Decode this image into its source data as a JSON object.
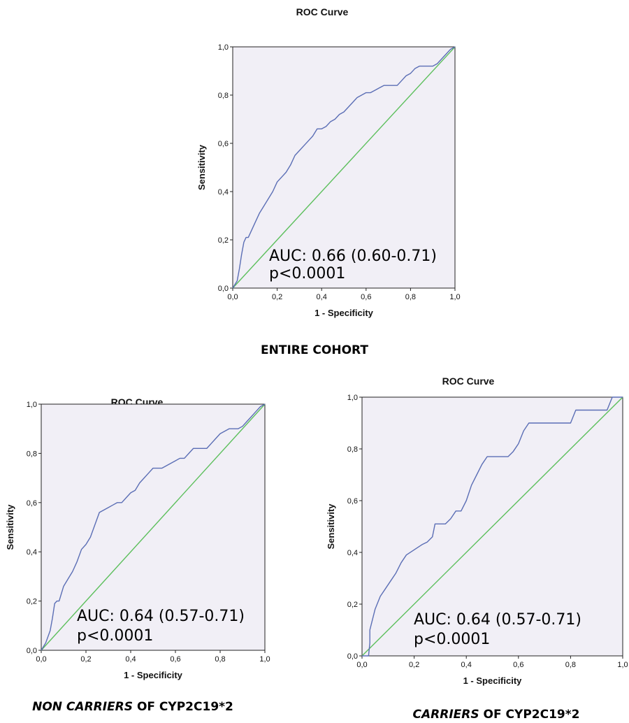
{
  "chart_data": [
    {
      "type": "line",
      "title": "ROC Curve",
      "xlabel": "1 - Specificity",
      "ylabel": "Sensitivity",
      "xlim": [
        0,
        1
      ],
      "ylim": [
        0,
        1
      ],
      "x_ticks": [
        "0,0",
        "0,2",
        "0,4",
        "0,6",
        "0,8",
        "1,0"
      ],
      "y_ticks": [
        "0,0",
        "0,2",
        "0,4",
        "0,6",
        "0,8",
        "1,0"
      ],
      "grid": false,
      "annotation": [
        "AUC: 0.66 (0.60-0.71)",
        "p<0.0001"
      ],
      "caption": [
        "ENTIRE COHORT"
      ],
      "colors": {
        "curve": "#5b6eb5",
        "diagonal": "#5cbf5c",
        "plot_bg": "#f1eff6"
      },
      "series": [
        {
          "x": [
            0,
            0.02,
            0.03,
            0.04,
            0.05,
            0.06,
            0.07,
            0.08,
            0.1,
            0.12,
            0.14,
            0.16,
            0.18,
            0.2,
            0.22,
            0.24,
            0.26,
            0.28,
            0.3,
            0.32,
            0.34,
            0.36,
            0.38,
            0.4,
            0.42,
            0.44,
            0.46,
            0.48,
            0.5,
            0.52,
            0.54,
            0.56,
            0.58,
            0.6,
            0.62,
            0.64,
            0.66,
            0.68,
            0.7,
            0.72,
            0.74,
            0.76,
            0.78,
            0.8,
            0.82,
            0.84,
            0.86,
            0.88,
            0.9,
            0.92,
            0.94,
            0.96,
            0.98,
            1.0
          ],
          "y": [
            0,
            0.03,
            0.08,
            0.14,
            0.19,
            0.21,
            0.21,
            0.23,
            0.27,
            0.31,
            0.34,
            0.37,
            0.4,
            0.44,
            0.46,
            0.48,
            0.51,
            0.55,
            0.57,
            0.59,
            0.61,
            0.63,
            0.66,
            0.66,
            0.67,
            0.69,
            0.7,
            0.72,
            0.73,
            0.75,
            0.77,
            0.79,
            0.8,
            0.81,
            0.81,
            0.82,
            0.83,
            0.84,
            0.84,
            0.84,
            0.84,
            0.86,
            0.88,
            0.89,
            0.91,
            0.92,
            0.92,
            0.92,
            0.92,
            0.93,
            0.95,
            0.97,
            0.99,
            1.0
          ]
        },
        {
          "x": [
            0,
            1
          ],
          "y": [
            0,
            1
          ]
        }
      ]
    },
    {
      "type": "line",
      "title": "ROC Curve",
      "xlabel": "1 - Specificity",
      "ylabel": "Sensitivity",
      "xlim": [
        0,
        1
      ],
      "ylim": [
        0,
        1
      ],
      "x_ticks": [
        "0,0",
        "0,2",
        "0,4",
        "0,6",
        "0,8",
        "1,0"
      ],
      "y_ticks": [
        "0,0",
        "0,2",
        "0,4",
        "0,6",
        "0,8",
        "1,0"
      ],
      "grid": false,
      "annotation": [
        "AUC: 0.64 (0.57-0.71)",
        "p<0.0001"
      ],
      "caption": [
        "NON CARRIERS",
        "OF CYP2C19*2"
      ],
      "colors": {
        "curve": "#5b6eb5",
        "diagonal": "#5cbf5c",
        "plot_bg": "#f1eff6"
      },
      "series": [
        {
          "x": [
            0,
            0.02,
            0.04,
            0.05,
            0.06,
            0.07,
            0.08,
            0.1,
            0.12,
            0.14,
            0.16,
            0.18,
            0.2,
            0.22,
            0.24,
            0.26,
            0.28,
            0.3,
            0.32,
            0.34,
            0.36,
            0.38,
            0.4,
            0.42,
            0.44,
            0.46,
            0.48,
            0.5,
            0.52,
            0.54,
            0.56,
            0.58,
            0.6,
            0.62,
            0.64,
            0.66,
            0.68,
            0.7,
            0.72,
            0.74,
            0.76,
            0.78,
            0.8,
            0.82,
            0.84,
            0.86,
            0.88,
            0.9,
            0.92,
            0.94,
            0.96,
            0.98,
            1.0
          ],
          "y": [
            0,
            0.03,
            0.08,
            0.13,
            0.19,
            0.2,
            0.2,
            0.26,
            0.29,
            0.32,
            0.36,
            0.41,
            0.43,
            0.46,
            0.51,
            0.56,
            0.57,
            0.58,
            0.59,
            0.6,
            0.6,
            0.62,
            0.64,
            0.65,
            0.68,
            0.7,
            0.72,
            0.74,
            0.74,
            0.74,
            0.75,
            0.76,
            0.77,
            0.78,
            0.78,
            0.8,
            0.82,
            0.82,
            0.82,
            0.82,
            0.84,
            0.86,
            0.88,
            0.89,
            0.9,
            0.9,
            0.9,
            0.91,
            0.93,
            0.95,
            0.97,
            0.99,
            1.0
          ]
        },
        {
          "x": [
            0,
            1
          ],
          "y": [
            0,
            1
          ]
        }
      ]
    },
    {
      "type": "line",
      "title": "ROC Curve",
      "xlabel": "1 - Specificity",
      "ylabel": "Sensitivity",
      "xlim": [
        0,
        1
      ],
      "ylim": [
        0,
        1
      ],
      "x_ticks": [
        "0,0",
        "0,2",
        "0,4",
        "0,6",
        "0,8",
        "1,0"
      ],
      "y_ticks": [
        "0,0",
        "0,2",
        "0,4",
        "0,6",
        "0,8",
        "1,0"
      ],
      "grid": false,
      "annotation": [
        "AUC: 0.64 (0.57-0.71)",
        "p<0.0001"
      ],
      "caption": [
        "CARRIERS",
        "OF CYP2C19*2"
      ],
      "colors": {
        "curve": "#5b6eb5",
        "diagonal": "#5cbf5c",
        "plot_bg": "#f1eff6"
      },
      "series": [
        {
          "x": [
            0,
            0.025,
            0.03,
            0.03,
            0.05,
            0.07,
            0.09,
            0.11,
            0.13,
            0.15,
            0.17,
            0.2,
            0.23,
            0.25,
            0.27,
            0.28,
            0.3,
            0.32,
            0.34,
            0.36,
            0.38,
            0.4,
            0.42,
            0.44,
            0.46,
            0.48,
            0.5,
            0.52,
            0.54,
            0.56,
            0.58,
            0.6,
            0.62,
            0.64,
            0.66,
            0.68,
            0.7,
            0.72,
            0.74,
            0.76,
            0.8,
            0.82,
            0.84,
            0.86,
            0.88,
            0.9,
            0.92,
            0.94,
            0.96,
            1.0
          ],
          "y": [
            0,
            0,
            0.05,
            0.1,
            0.18,
            0.23,
            0.26,
            0.29,
            0.32,
            0.36,
            0.39,
            0.41,
            0.43,
            0.44,
            0.46,
            0.51,
            0.51,
            0.51,
            0.53,
            0.56,
            0.56,
            0.6,
            0.66,
            0.7,
            0.74,
            0.77,
            0.77,
            0.77,
            0.77,
            0.77,
            0.79,
            0.82,
            0.87,
            0.9,
            0.9,
            0.9,
            0.9,
            0.9,
            0.9,
            0.9,
            0.9,
            0.95,
            0.95,
            0.95,
            0.95,
            0.95,
            0.95,
            0.95,
            1.0,
            1.0
          ]
        },
        {
          "x": [
            0,
            1
          ],
          "y": [
            0,
            1
          ]
        }
      ]
    }
  ]
}
